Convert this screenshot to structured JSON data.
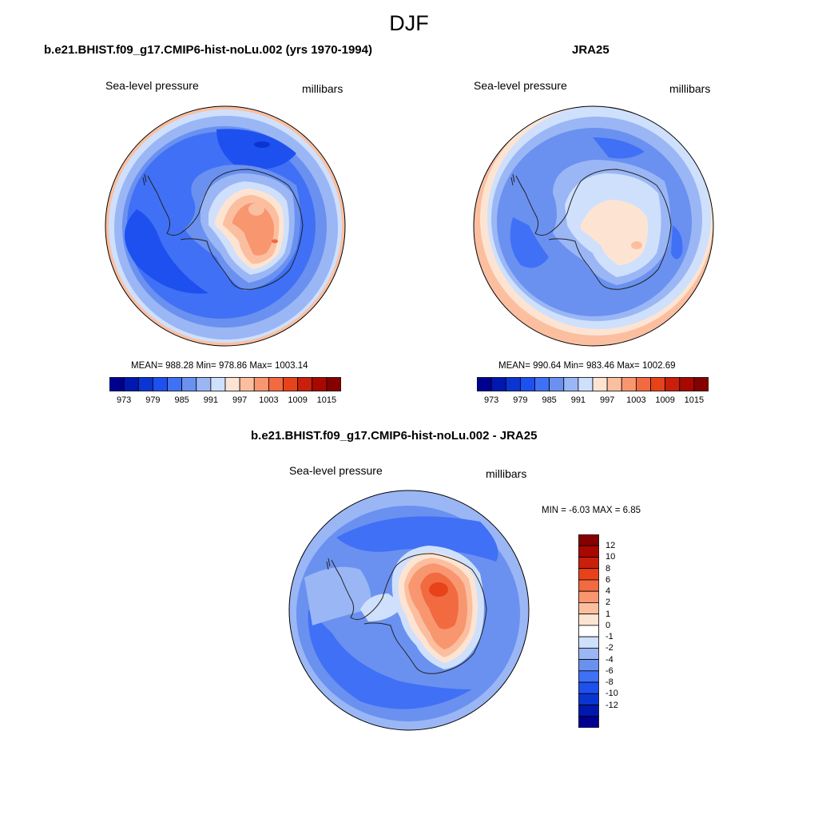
{
  "title": "DJF",
  "panels": {
    "model": {
      "title": "b.e21.BHIST.f09_g17.CMIP6-hist-noLu.002 (yrs 1970-1994)",
      "variable": "Sea-level pressure",
      "units": "millibars",
      "stats": "MEAN= 988.28  Min= 978.86  Max= 1003.14"
    },
    "obs": {
      "title": "JRA25",
      "variable": "Sea-level pressure",
      "units": "millibars",
      "stats": "MEAN= 990.64  Min= 983.46  Max= 1002.69"
    },
    "diff": {
      "title": "b.e21.BHIST.f09_g17.CMIP6-hist-noLu.002 - JRA25",
      "variable": "Sea-level pressure",
      "units": "millibars",
      "stats": "MIN =  -6.03 MAX =   6.85"
    }
  },
  "colorbars": {
    "abs": {
      "tick_labels": [
        "973",
        "979",
        "985",
        "991",
        "997",
        "1003",
        "1009",
        "1015"
      ],
      "colors": [
        "#000090",
        "#0018b0",
        "#0a35d0",
        "#1e50ef",
        "#4070f5",
        "#6a91f0",
        "#9ab6f5",
        "#cfe0fc",
        "#fde4d2",
        "#fbbfa0",
        "#f89670",
        "#f26a40",
        "#e8421a",
        "#c8200a",
        "#a80800",
        "#850000"
      ]
    },
    "diff": {
      "tick_labels": [
        "12",
        "10",
        "8",
        "6",
        "4",
        "2",
        "1",
        "0",
        "-1",
        "-2",
        "-4",
        "-6",
        "-8",
        "-10",
        "-12"
      ],
      "colors": [
        "#850000",
        "#a80800",
        "#c8200a",
        "#e8421a",
        "#f26a40",
        "#f89670",
        "#fbbfa0",
        "#fde4d2",
        "#ffffff",
        "#cfe0fc",
        "#9ab6f5",
        "#6a91f0",
        "#4070f5",
        "#1e50ef",
        "#0a35d0",
        "#0018b0",
        "#000090"
      ]
    }
  }
}
